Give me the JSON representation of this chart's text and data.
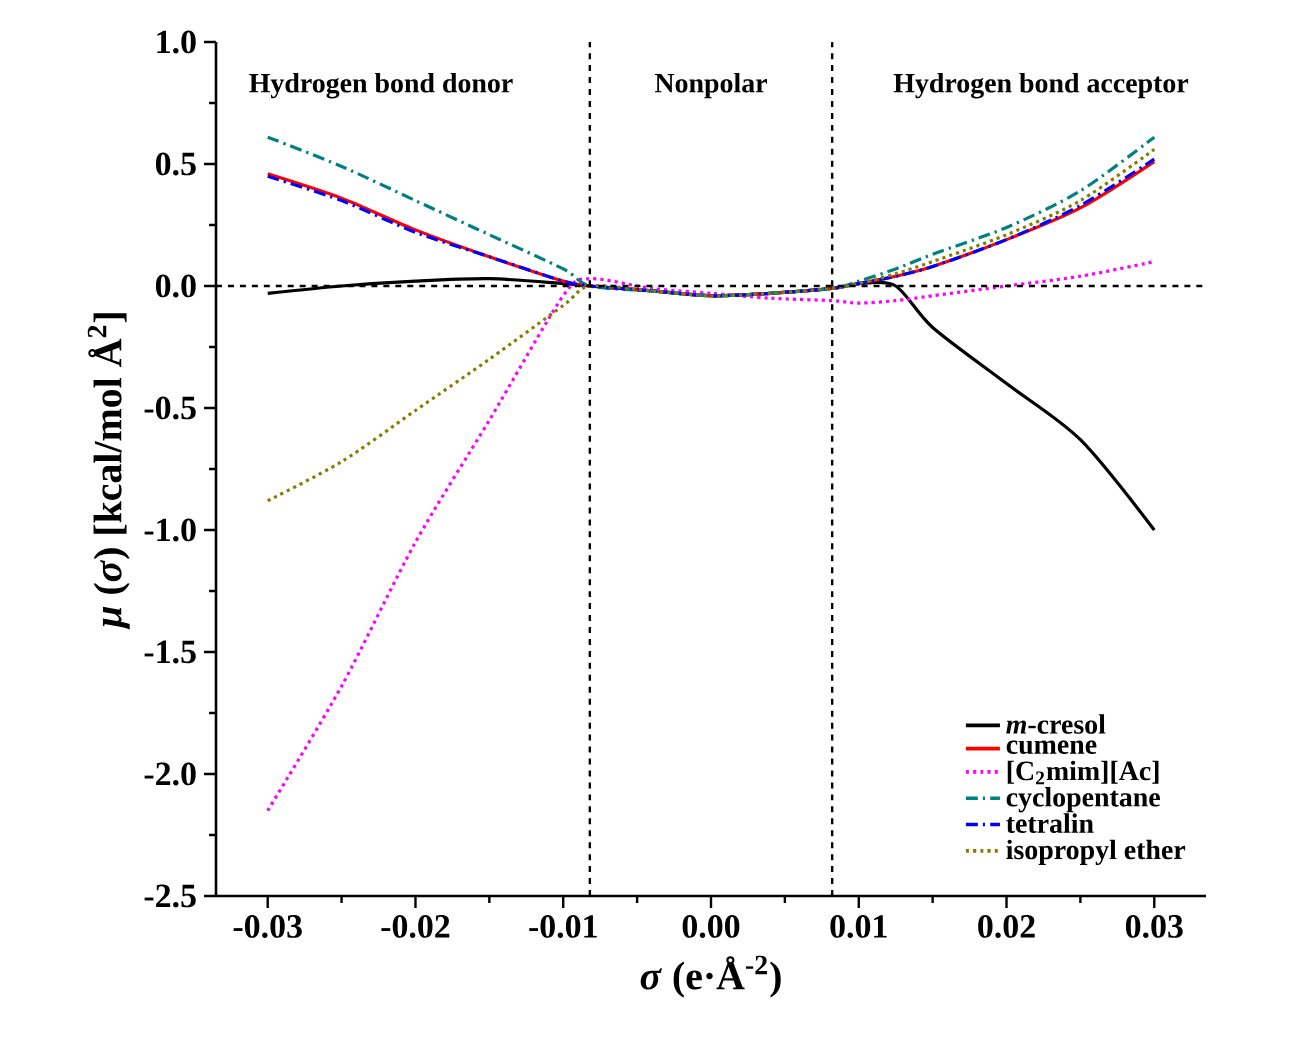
{
  "chart_data": {
    "type": "line",
    "xlabel": "*σ* (e·Å$^{-2}$)",
    "ylabel": "*μ* (*σ*) [kcal/mol Å$^{2}$]",
    "x": [
      -0.03,
      -0.025,
      -0.02,
      -0.015,
      -0.01,
      -0.0082,
      -0.004,
      0,
      0.004,
      0.0082,
      0.01,
      0.0125,
      0.015,
      0.02,
      0.025,
      0.03
    ],
    "series": [
      {
        "name": "*m*-cresol",
        "color": "#000000",
        "line_style": "solid",
        "values": [
          -0.03,
          0.0,
          0.02,
          0.03,
          0.01,
          0.0,
          -0.02,
          -0.04,
          -0.03,
          -0.01,
          0.01,
          0.0,
          -0.17,
          -0.4,
          -0.63,
          -1.0
        ]
      },
      {
        "name": "cumene",
        "color": "#ff0000",
        "line_style": "solid",
        "values": [
          0.46,
          0.36,
          0.23,
          0.12,
          0.02,
          0.0,
          -0.02,
          -0.04,
          -0.03,
          -0.01,
          0.01,
          0.04,
          0.08,
          0.19,
          0.32,
          0.51
        ]
      },
      {
        "name": "[C$_{2}$mim][Ac]",
        "color": "#ff00ff",
        "line_style": "dotted",
        "values": [
          -2.15,
          -1.64,
          -1.05,
          -0.55,
          -0.04,
          0.03,
          -0.01,
          -0.03,
          -0.05,
          -0.06,
          -0.07,
          -0.06,
          -0.04,
          0.0,
          0.04,
          0.1
        ]
      },
      {
        "name": "cyclopentane",
        "color": "#008080",
        "line_style": "dashdot",
        "values": [
          0.61,
          0.49,
          0.35,
          0.21,
          0.07,
          0.0,
          -0.02,
          -0.04,
          -0.03,
          -0.01,
          0.02,
          0.07,
          0.13,
          0.24,
          0.39,
          0.61
        ]
      },
      {
        "name": "tetralin",
        "color": "#0000ff",
        "line_style": "dashdot",
        "values": [
          0.45,
          0.35,
          0.22,
          0.12,
          0.02,
          0.0,
          -0.02,
          -0.04,
          -0.03,
          -0.01,
          0.01,
          0.04,
          0.08,
          0.19,
          0.33,
          0.52
        ]
      },
      {
        "name": "isopropyl ether",
        "color": "#808000",
        "line_style": "dotted",
        "values": [
          -0.88,
          -0.72,
          -0.51,
          -0.3,
          -0.08,
          0.0,
          -0.02,
          -0.04,
          -0.03,
          -0.01,
          0.01,
          0.05,
          0.1,
          0.21,
          0.35,
          0.56
        ]
      }
    ],
    "xlim": [
      -0.0335,
      0.0335
    ],
    "ylim": [
      -2.5,
      1.0
    ],
    "xticks": [
      -0.03,
      -0.02,
      -0.01,
      {
        "value": 0,
        "label": "0.00"
      },
      0.01,
      0.02,
      0.03
    ],
    "yticks": [
      -2.5,
      {
        "value": -2,
        "label": "-2.0"
      },
      -1.5,
      {
        "value": -1,
        "label": "-1.0"
      },
      -0.5,
      {
        "value": 0,
        "label": "0.0"
      },
      0.5,
      {
        "value": 1,
        "label": "1.0"
      }
    ],
    "ref_lines": [
      {
        "axis": "y",
        "value": 0,
        "color": "#000000",
        "line_style": "dashed"
      },
      {
        "axis": "x",
        "value": -0.0082,
        "color": "#000000",
        "line_style": "dashed"
      },
      {
        "axis": "x",
        "value": 0.0082,
        "color": "#000000",
        "line_style": "dashed"
      }
    ],
    "annotations": [
      "Hydrogen bond donor",
      "Nonpolar",
      "Hydrogen bond acceptor"
    ],
    "legend": "bottom right",
    "marker": "none",
    "grid": false
  }
}
